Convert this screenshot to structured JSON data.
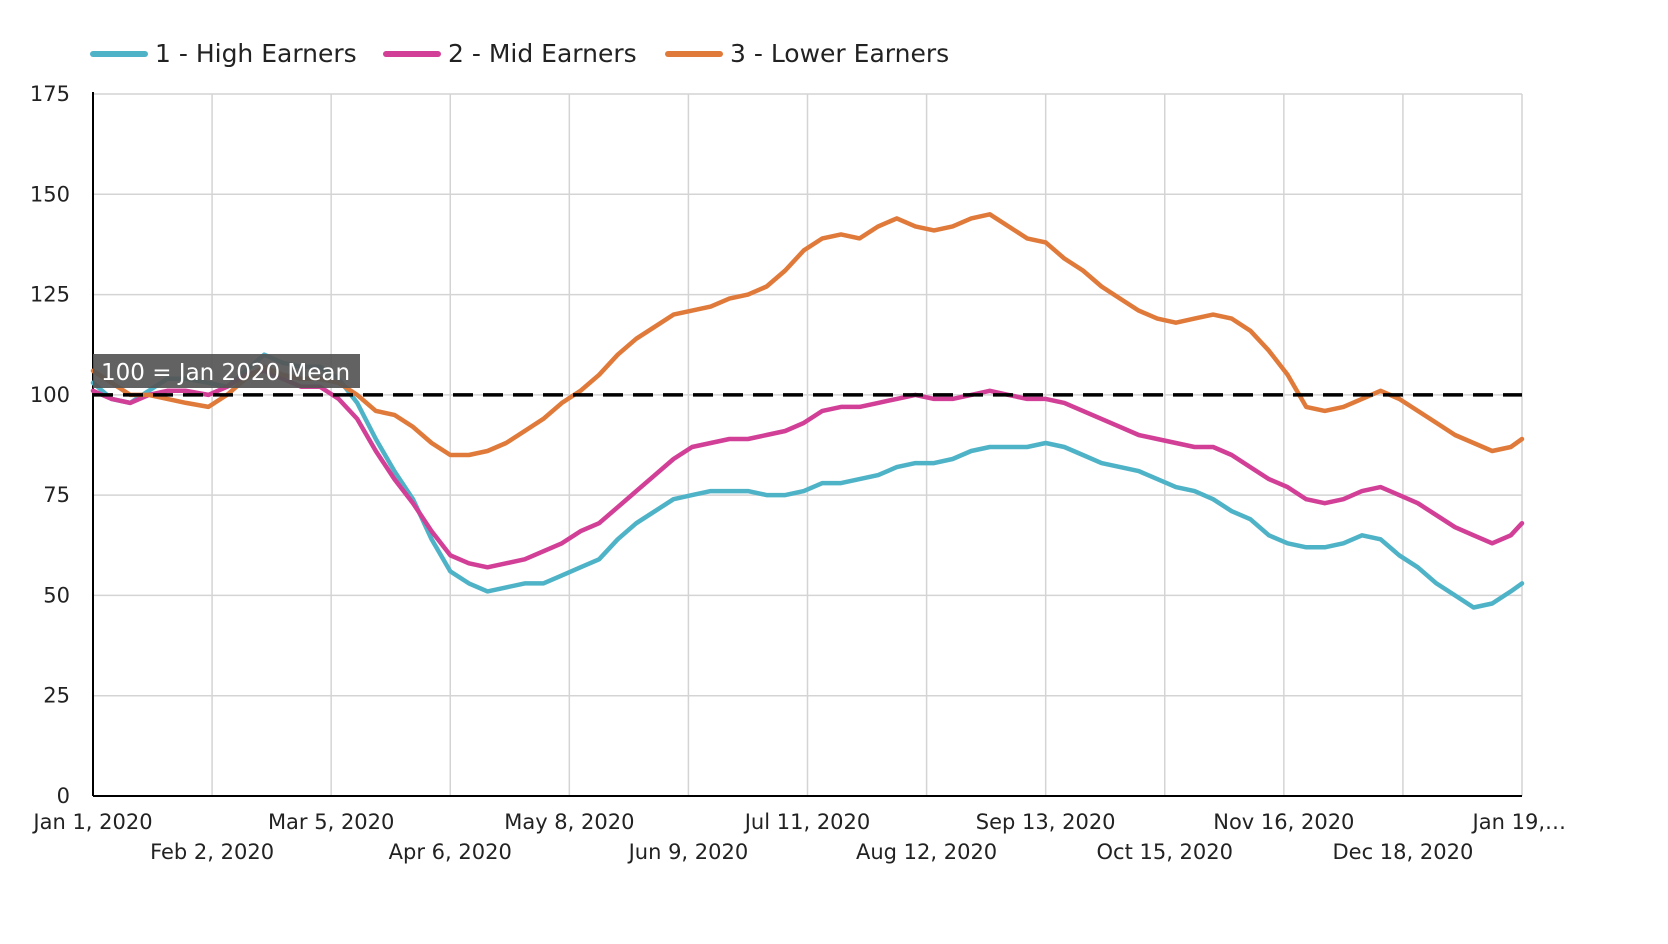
{
  "chart_data": {
    "type": "line",
    "title": "",
    "xlabel": "",
    "ylabel": "",
    "ylim": [
      0,
      175
    ],
    "xlim": [
      "2020-01-01",
      "2021-01-19"
    ],
    "yticks": [
      0,
      25,
      50,
      75,
      100,
      125,
      150,
      175
    ],
    "xticks": [
      {
        "date": "2020-01-01",
        "label": "Jan 1, 2020",
        "row": 0
      },
      {
        "date": "2020-02-02",
        "label": "Feb 2, 2020",
        "row": 1
      },
      {
        "date": "2020-03-05",
        "label": "Mar 5, 2020",
        "row": 0
      },
      {
        "date": "2020-04-06",
        "label": "Apr 6, 2020",
        "row": 1
      },
      {
        "date": "2020-05-08",
        "label": "May 8, 2020",
        "row": 0
      },
      {
        "date": "2020-06-09",
        "label": "Jun 9, 2020",
        "row": 1
      },
      {
        "date": "2020-07-11",
        "label": "Jul 11, 2020",
        "row": 0
      },
      {
        "date": "2020-08-12",
        "label": "Aug 12, 2020",
        "row": 1
      },
      {
        "date": "2020-09-13",
        "label": "Sep 13, 2020",
        "row": 0
      },
      {
        "date": "2020-10-15",
        "label": "Oct 15, 2020",
        "row": 1
      },
      {
        "date": "2020-11-16",
        "label": "Nov 16, 2020",
        "row": 0
      },
      {
        "date": "2020-12-18",
        "label": "Dec 18, 2020",
        "row": 1
      },
      {
        "date": "2021-01-19",
        "label": "Jan 19,…",
        "row": 0
      }
    ],
    "grid": true,
    "legend_position": "top-left",
    "reference_line": {
      "y": 100,
      "style": "dashed",
      "color": "#000000",
      "label": "100 = Jan 2020 Mean"
    },
    "series": [
      {
        "name": "1 - High Earners",
        "color": "#4fb3c8",
        "points": [
          [
            "2020-01-01",
            103
          ],
          [
            "2020-01-06",
            99
          ],
          [
            "2020-01-11",
            98
          ],
          [
            "2020-01-16",
            101
          ],
          [
            "2020-01-21",
            104
          ],
          [
            "2020-01-26",
            104
          ],
          [
            "2020-02-01",
            103
          ],
          [
            "2020-02-06",
            102
          ],
          [
            "2020-02-11",
            106
          ],
          [
            "2020-02-16",
            110
          ],
          [
            "2020-02-21",
            108
          ],
          [
            "2020-02-26",
            107
          ],
          [
            "2020-03-02",
            107
          ],
          [
            "2020-03-07",
            104
          ],
          [
            "2020-03-12",
            98
          ],
          [
            "2020-03-17",
            89
          ],
          [
            "2020-03-22",
            81
          ],
          [
            "2020-03-27",
            74
          ],
          [
            "2020-04-01",
            64
          ],
          [
            "2020-04-06",
            56
          ],
          [
            "2020-04-11",
            53
          ],
          [
            "2020-04-16",
            51
          ],
          [
            "2020-04-21",
            52
          ],
          [
            "2020-04-26",
            53
          ],
          [
            "2020-05-01",
            53
          ],
          [
            "2020-05-06",
            55
          ],
          [
            "2020-05-11",
            57
          ],
          [
            "2020-05-16",
            59
          ],
          [
            "2020-05-21",
            64
          ],
          [
            "2020-05-26",
            68
          ],
          [
            "2020-05-31",
            71
          ],
          [
            "2020-06-05",
            74
          ],
          [
            "2020-06-10",
            75
          ],
          [
            "2020-06-15",
            76
          ],
          [
            "2020-06-20",
            76
          ],
          [
            "2020-06-25",
            76
          ],
          [
            "2020-06-30",
            75
          ],
          [
            "2020-07-05",
            75
          ],
          [
            "2020-07-10",
            76
          ],
          [
            "2020-07-15",
            78
          ],
          [
            "2020-07-20",
            78
          ],
          [
            "2020-07-25",
            79
          ],
          [
            "2020-07-30",
            80
          ],
          [
            "2020-08-04",
            82
          ],
          [
            "2020-08-09",
            83
          ],
          [
            "2020-08-14",
            83
          ],
          [
            "2020-08-19",
            84
          ],
          [
            "2020-08-24",
            86
          ],
          [
            "2020-08-29",
            87
          ],
          [
            "2020-09-03",
            87
          ],
          [
            "2020-09-08",
            87
          ],
          [
            "2020-09-13",
            88
          ],
          [
            "2020-09-18",
            87
          ],
          [
            "2020-09-23",
            85
          ],
          [
            "2020-09-28",
            83
          ],
          [
            "2020-10-03",
            82
          ],
          [
            "2020-10-08",
            81
          ],
          [
            "2020-10-13",
            79
          ],
          [
            "2020-10-18",
            77
          ],
          [
            "2020-10-23",
            76
          ],
          [
            "2020-10-28",
            74
          ],
          [
            "2020-11-02",
            71
          ],
          [
            "2020-11-07",
            69
          ],
          [
            "2020-11-12",
            65
          ],
          [
            "2020-11-17",
            63
          ],
          [
            "2020-11-22",
            62
          ],
          [
            "2020-11-27",
            62
          ],
          [
            "2020-12-02",
            63
          ],
          [
            "2020-12-07",
            65
          ],
          [
            "2020-12-12",
            64
          ],
          [
            "2020-12-17",
            60
          ],
          [
            "2020-12-22",
            57
          ],
          [
            "2020-12-27",
            53
          ],
          [
            "2021-01-01",
            50
          ],
          [
            "2021-01-06",
            47
          ],
          [
            "2021-01-11",
            48
          ],
          [
            "2021-01-16",
            51
          ],
          [
            "2021-01-19",
            53
          ]
        ]
      },
      {
        "name": "2 - Mid Earners",
        "color": "#d23f97",
        "points": [
          [
            "2020-01-01",
            101
          ],
          [
            "2020-01-06",
            99
          ],
          [
            "2020-01-11",
            98
          ],
          [
            "2020-01-16",
            100
          ],
          [
            "2020-01-21",
            101
          ],
          [
            "2020-01-26",
            101
          ],
          [
            "2020-02-01",
            100
          ],
          [
            "2020-02-06",
            102
          ],
          [
            "2020-02-11",
            105
          ],
          [
            "2020-02-16",
            106
          ],
          [
            "2020-02-21",
            104
          ],
          [
            "2020-02-26",
            102
          ],
          [
            "2020-03-02",
            102
          ],
          [
            "2020-03-07",
            99
          ],
          [
            "2020-03-12",
            94
          ],
          [
            "2020-03-17",
            86
          ],
          [
            "2020-03-22",
            79
          ],
          [
            "2020-03-27",
            73
          ],
          [
            "2020-04-01",
            66
          ],
          [
            "2020-04-06",
            60
          ],
          [
            "2020-04-11",
            58
          ],
          [
            "2020-04-16",
            57
          ],
          [
            "2020-04-21",
            58
          ],
          [
            "2020-04-26",
            59
          ],
          [
            "2020-05-01",
            61
          ],
          [
            "2020-05-06",
            63
          ],
          [
            "2020-05-11",
            66
          ],
          [
            "2020-05-16",
            68
          ],
          [
            "2020-05-21",
            72
          ],
          [
            "2020-05-26",
            76
          ],
          [
            "2020-05-31",
            80
          ],
          [
            "2020-06-05",
            84
          ],
          [
            "2020-06-10",
            87
          ],
          [
            "2020-06-15",
            88
          ],
          [
            "2020-06-20",
            89
          ],
          [
            "2020-06-25",
            89
          ],
          [
            "2020-06-30",
            90
          ],
          [
            "2020-07-05",
            91
          ],
          [
            "2020-07-10",
            93
          ],
          [
            "2020-07-15",
            96
          ],
          [
            "2020-07-20",
            97
          ],
          [
            "2020-07-25",
            97
          ],
          [
            "2020-07-30",
            98
          ],
          [
            "2020-08-04",
            99
          ],
          [
            "2020-08-09",
            100
          ],
          [
            "2020-08-14",
            99
          ],
          [
            "2020-08-19",
            99
          ],
          [
            "2020-08-24",
            100
          ],
          [
            "2020-08-29",
            101
          ],
          [
            "2020-09-03",
            100
          ],
          [
            "2020-09-08",
            99
          ],
          [
            "2020-09-13",
            99
          ],
          [
            "2020-09-18",
            98
          ],
          [
            "2020-09-23",
            96
          ],
          [
            "2020-09-28",
            94
          ],
          [
            "2020-10-03",
            92
          ],
          [
            "2020-10-08",
            90
          ],
          [
            "2020-10-13",
            89
          ],
          [
            "2020-10-18",
            88
          ],
          [
            "2020-10-23",
            87
          ],
          [
            "2020-10-28",
            87
          ],
          [
            "2020-11-02",
            85
          ],
          [
            "2020-11-07",
            82
          ],
          [
            "2020-11-12",
            79
          ],
          [
            "2020-11-17",
            77
          ],
          [
            "2020-11-22",
            74
          ],
          [
            "2020-11-27",
            73
          ],
          [
            "2020-12-02",
            74
          ],
          [
            "2020-12-07",
            76
          ],
          [
            "2020-12-12",
            77
          ],
          [
            "2020-12-17",
            75
          ],
          [
            "2020-12-22",
            73
          ],
          [
            "2020-12-27",
            70
          ],
          [
            "2021-01-01",
            67
          ],
          [
            "2021-01-06",
            65
          ],
          [
            "2021-01-11",
            63
          ],
          [
            "2021-01-16",
            65
          ],
          [
            "2021-01-19",
            68
          ]
        ]
      },
      {
        "name": "3 - Lower Earners",
        "color": "#e07a3a",
        "points": [
          [
            "2020-01-01",
            106
          ],
          [
            "2020-01-06",
            103
          ],
          [
            "2020-01-11",
            100
          ],
          [
            "2020-01-16",
            100
          ],
          [
            "2020-01-21",
            99
          ],
          [
            "2020-01-26",
            98
          ],
          [
            "2020-02-01",
            97
          ],
          [
            "2020-02-06",
            100
          ],
          [
            "2020-02-11",
            104
          ],
          [
            "2020-02-16",
            107
          ],
          [
            "2020-02-21",
            105
          ],
          [
            "2020-02-26",
            104
          ],
          [
            "2020-03-02",
            104
          ],
          [
            "2020-03-07",
            103
          ],
          [
            "2020-03-12",
            100
          ],
          [
            "2020-03-17",
            96
          ],
          [
            "2020-03-22",
            95
          ],
          [
            "2020-03-27",
            92
          ],
          [
            "2020-04-01",
            88
          ],
          [
            "2020-04-06",
            85
          ],
          [
            "2020-04-11",
            85
          ],
          [
            "2020-04-16",
            86
          ],
          [
            "2020-04-21",
            88
          ],
          [
            "2020-04-26",
            91
          ],
          [
            "2020-05-01",
            94
          ],
          [
            "2020-05-06",
            98
          ],
          [
            "2020-05-11",
            101
          ],
          [
            "2020-05-16",
            105
          ],
          [
            "2020-05-21",
            110
          ],
          [
            "2020-05-26",
            114
          ],
          [
            "2020-05-31",
            117
          ],
          [
            "2020-06-05",
            120
          ],
          [
            "2020-06-10",
            121
          ],
          [
            "2020-06-15",
            122
          ],
          [
            "2020-06-20",
            124
          ],
          [
            "2020-06-25",
            125
          ],
          [
            "2020-06-30",
            127
          ],
          [
            "2020-07-05",
            131
          ],
          [
            "2020-07-10",
            136
          ],
          [
            "2020-07-15",
            139
          ],
          [
            "2020-07-20",
            140
          ],
          [
            "2020-07-25",
            139
          ],
          [
            "2020-07-30",
            142
          ],
          [
            "2020-08-04",
            144
          ],
          [
            "2020-08-09",
            142
          ],
          [
            "2020-08-14",
            141
          ],
          [
            "2020-08-19",
            142
          ],
          [
            "2020-08-24",
            144
          ],
          [
            "2020-08-29",
            145
          ],
          [
            "2020-09-03",
            142
          ],
          [
            "2020-09-08",
            139
          ],
          [
            "2020-09-13",
            138
          ],
          [
            "2020-09-18",
            134
          ],
          [
            "2020-09-23",
            131
          ],
          [
            "2020-09-28",
            127
          ],
          [
            "2020-10-03",
            124
          ],
          [
            "2020-10-08",
            121
          ],
          [
            "2020-10-13",
            119
          ],
          [
            "2020-10-18",
            118
          ],
          [
            "2020-10-23",
            119
          ],
          [
            "2020-10-28",
            120
          ],
          [
            "2020-11-02",
            119
          ],
          [
            "2020-11-07",
            116
          ],
          [
            "2020-11-12",
            111
          ],
          [
            "2020-11-17",
            105
          ],
          [
            "2020-11-22",
            97
          ],
          [
            "2020-11-27",
            96
          ],
          [
            "2020-12-02",
            97
          ],
          [
            "2020-12-07",
            99
          ],
          [
            "2020-12-12",
            101
          ],
          [
            "2020-12-17",
            99
          ],
          [
            "2020-12-22",
            96
          ],
          [
            "2020-12-27",
            93
          ],
          [
            "2021-01-01",
            90
          ],
          [
            "2021-01-06",
            88
          ],
          [
            "2021-01-11",
            86
          ],
          [
            "2021-01-16",
            87
          ],
          [
            "2021-01-19",
            89
          ]
        ]
      }
    ]
  }
}
